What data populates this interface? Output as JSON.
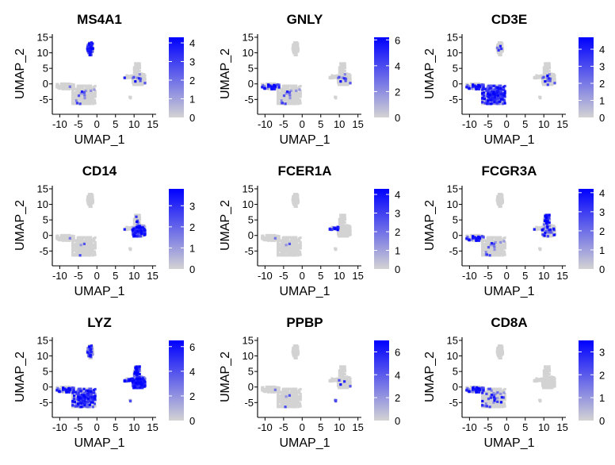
{
  "chart_data": {
    "type": "scatter",
    "layout": "3x3 grid of feature plots",
    "xlabel": "UMAP_1",
    "ylabel": "UMAP_2",
    "xlim": [
      -12,
      15.5
    ],
    "ylim": [
      -9,
      15.5
    ],
    "xticks": [
      -10,
      -5,
      0,
      5,
      10,
      15
    ],
    "yticks": [
      -5,
      0,
      5,
      10,
      15
    ],
    "color_low": "#D3D3D3",
    "color_high": "#0000FF",
    "clusters": [
      {
        "name": "b-cell-island",
        "center": [
          -1.8,
          11.3
        ],
        "spread": [
          0.6,
          1.6
        ]
      },
      {
        "name": "t-nk-main-blob",
        "center": [
          -3.5,
          -3.5
        ],
        "spread": [
          2.4,
          2.3
        ]
      },
      {
        "name": "t-nk-left-arm",
        "center": [
          -8.5,
          -0.8
        ],
        "spread": [
          1.8,
          0.7
        ]
      },
      {
        "name": "myeloid-body",
        "center": [
          11.3,
          1.5
        ],
        "spread": [
          1.3,
          1.4
        ]
      },
      {
        "name": "myeloid-top",
        "center": [
          10.8,
          4.8
        ],
        "spread": [
          0.6,
          1.4
        ]
      },
      {
        "name": "dc-arm",
        "center": [
          8.6,
          2.2
        ],
        "spread": [
          0.9,
          0.4
        ]
      },
      {
        "name": "platelet-dot",
        "center": [
          9.0,
          -4.4
        ],
        "spread": [
          0.15,
          0.15
        ]
      }
    ],
    "panels": [
      {
        "gene": "MS4A1",
        "legend_ticks": [
          0,
          1,
          2,
          3,
          4
        ],
        "max": 4.3,
        "expression": {
          "b-cell-island": 0.7,
          "t-nk-main-blob": 0.02,
          "t-nk-left-arm": 0.01,
          "myeloid-body": 0.03,
          "myeloid-top": 0.01,
          "dc-arm": 0.01,
          "platelet-dot": 0.0
        }
      },
      {
        "gene": "GNLY",
        "legend_ticks": [
          0,
          2,
          4,
          6
        ],
        "max": 6.2,
        "expression": {
          "b-cell-island": 0.0,
          "t-nk-main-blob": 0.03,
          "t-nk-left-arm": 0.35,
          "myeloid-body": 0.03,
          "myeloid-top": 0.02,
          "dc-arm": 0.0,
          "platelet-dot": 0.0
        }
      },
      {
        "gene": "CD3E",
        "legend_ticks": [
          0,
          1,
          2,
          3,
          4
        ],
        "max": 4.7,
        "expression": {
          "b-cell-island": 0.05,
          "t-nk-main-blob": 0.55,
          "t-nk-left-arm": 0.35,
          "myeloid-body": 0.04,
          "myeloid-top": 0.02,
          "dc-arm": 0.0,
          "platelet-dot": 0.0
        }
      },
      {
        "gene": "CD14",
        "legend_ticks": [
          0,
          1,
          2,
          3
        ],
        "max": 3.8,
        "expression": {
          "b-cell-island": 0.0,
          "t-nk-main-blob": 0.01,
          "t-nk-left-arm": 0.01,
          "myeloid-body": 0.55,
          "myeloid-top": 0.05,
          "dc-arm": 0.1,
          "platelet-dot": 0.0
        }
      },
      {
        "gene": "FCER1A",
        "legend_ticks": [
          0,
          1,
          2,
          3,
          4
        ],
        "max": 4.3,
        "expression": {
          "b-cell-island": 0.0,
          "t-nk-main-blob": 0.003,
          "t-nk-left-arm": 0.003,
          "myeloid-body": 0.0,
          "myeloid-top": 0.0,
          "dc-arm": 0.6,
          "platelet-dot": 0.0
        }
      },
      {
        "gene": "FCGR3A",
        "legend_ticks": [
          0,
          1,
          2,
          3,
          4
        ],
        "max": 4.2,
        "expression": {
          "b-cell-island": 0.0,
          "t-nk-main-blob": 0.03,
          "t-nk-left-arm": 0.3,
          "myeloid-body": 0.08,
          "myeloid-top": 0.65,
          "dc-arm": 0.1,
          "platelet-dot": 0.0
        }
      },
      {
        "gene": "LYZ",
        "legend_ticks": [
          0,
          2,
          4,
          6
        ],
        "max": 6.5,
        "expression": {
          "b-cell-island": 0.35,
          "t-nk-main-blob": 0.45,
          "t-nk-left-arm": 0.35,
          "myeloid-body": 0.95,
          "myeloid-top": 0.8,
          "dc-arm": 0.8,
          "platelet-dot": 0.5
        }
      },
      {
        "gene": "PPBP",
        "legend_ticks": [
          0,
          2,
          4,
          6
        ],
        "max": 7.0,
        "expression": {
          "b-cell-island": 0.0,
          "t-nk-main-blob": 0.01,
          "t-nk-left-arm": 0.005,
          "myeloid-body": 0.02,
          "myeloid-top": 0.02,
          "dc-arm": 0.0,
          "platelet-dot": 1.0
        }
      },
      {
        "gene": "CD8A",
        "legend_ticks": [
          0,
          1,
          2,
          3
        ],
        "max": 3.5,
        "expression": {
          "b-cell-island": 0.01,
          "t-nk-main-blob": 0.1,
          "t-nk-left-arm": 0.4,
          "myeloid-body": 0.0,
          "myeloid-top": 0.01,
          "dc-arm": 0.0,
          "platelet-dot": 0.0
        }
      }
    ]
  }
}
